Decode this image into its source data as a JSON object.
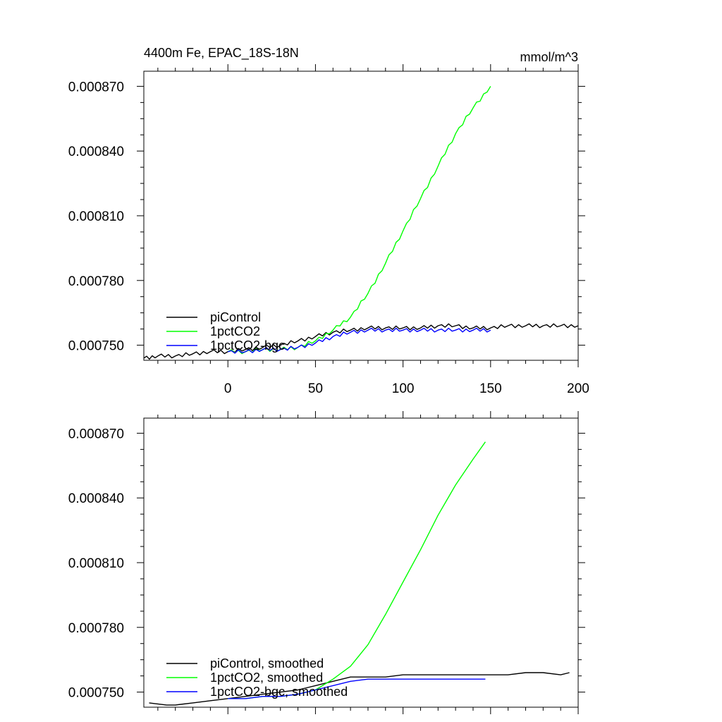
{
  "chart_data": [
    {
      "type": "line",
      "title": "4400m Fe, EPAC_18S-18N",
      "units": "mmol/m^3",
      "xlabel": "",
      "ylabel": "",
      "xlim": [
        -48,
        200
      ],
      "ylim": [
        0.000743,
        0.000877
      ],
      "xticks": [
        0,
        50,
        100,
        150,
        200
      ],
      "xtick_labels": [
        "0",
        "50",
        "100",
        "150",
        "200"
      ],
      "yticks": [
        0.00075,
        0.00078,
        0.00081,
        0.00084,
        0.00087
      ],
      "ytick_labels": [
        "0.000750",
        "0.000780",
        "0.000810",
        "0.000840",
        "0.000870"
      ],
      "grid": false,
      "legend_position": "bottom-left",
      "series": [
        {
          "name": "piControl",
          "color": "#000000",
          "x": [
            -48,
            -40,
            -30,
            -20,
            -10,
            0,
            10,
            20,
            30,
            40,
            50,
            60,
            70,
            80,
            90,
            100,
            110,
            120,
            130,
            140,
            150,
            160,
            170,
            180,
            190,
            200
          ],
          "y": [
            0.000744,
            0.000745,
            0.000745,
            0.000746,
            0.000747,
            0.000747,
            0.000748,
            0.000749,
            0.00075,
            0.000752,
            0.000754,
            0.000756,
            0.000757,
            0.000758,
            0.000758,
            0.000758,
            0.000758,
            0.000759,
            0.000759,
            0.000758,
            0.000758,
            0.000759,
            0.000759,
            0.000759,
            0.000759,
            0.000759
          ]
        },
        {
          "name": "1pctCO2",
          "color": "#00ff00",
          "x": [
            0,
            10,
            20,
            30,
            40,
            50,
            60,
            70,
            80,
            90,
            100,
            110,
            120,
            130,
            140,
            150
          ],
          "y": [
            0.000747,
            0.000747,
            0.000748,
            0.000748,
            0.000749,
            0.000752,
            0.000757,
            0.000763,
            0.000774,
            0.000788,
            0.000803,
            0.000818,
            0.000833,
            0.000848,
            0.00086,
            0.00087
          ]
        },
        {
          "name": "1pctCO2-bgc",
          "color": "#0000ff",
          "x": [
            0,
            10,
            20,
            30,
            40,
            50,
            60,
            70,
            80,
            90,
            100,
            110,
            120,
            130,
            140,
            150
          ],
          "y": [
            0.000747,
            0.000747,
            0.000748,
            0.000748,
            0.000749,
            0.000751,
            0.000754,
            0.000756,
            0.000757,
            0.000757,
            0.000757,
            0.000757,
            0.000757,
            0.000757,
            0.000757,
            0.000757
          ]
        }
      ]
    },
    {
      "type": "line",
      "title": "",
      "units": "",
      "xlabel": "",
      "ylabel": "",
      "xlim": [
        -48,
        200
      ],
      "ylim": [
        0.000743,
        0.000877
      ],
      "xticks": [
        0,
        50,
        100,
        150,
        200
      ],
      "xtick_labels": [],
      "yticks": [
        0.00075,
        0.00078,
        0.00081,
        0.00084,
        0.00087
      ],
      "ytick_labels": [
        "0.000750",
        "0.000780",
        "0.000810",
        "0.000840",
        "0.000870"
      ],
      "grid": false,
      "legend_position": "bottom-left",
      "series": [
        {
          "name": "piControl, smoothed",
          "color": "#000000",
          "x": [
            -45,
            -35,
            -30,
            -20,
            -10,
            0,
            10,
            20,
            30,
            40,
            50,
            60,
            70,
            80,
            90,
            100,
            110,
            120,
            130,
            134,
            140,
            150,
            160,
            170,
            180,
            190,
            195
          ],
          "y": [
            0.000745,
            0.000744,
            0.000744,
            0.000745,
            0.000746,
            0.000747,
            0.000748,
            0.000749,
            0.00075,
            0.000751,
            0.000753,
            0.000755,
            0.000757,
            0.000757,
            0.000757,
            0.000758,
            0.000758,
            0.000758,
            0.000758,
            0.000758,
            0.000758,
            0.000758,
            0.000758,
            0.000759,
            0.000759,
            0.000758,
            0.000759
          ]
        },
        {
          "name": "1pctCO2, smoothed",
          "color": "#00ff00",
          "x": [
            0,
            10,
            20,
            30,
            40,
            50,
            60,
            70,
            80,
            90,
            100,
            110,
            120,
            130,
            140,
            147
          ],
          "y": [
            0.000747,
            0.000747,
            0.000748,
            0.000748,
            0.000749,
            0.000751,
            0.000756,
            0.000762,
            0.000772,
            0.000786,
            0.000801,
            0.000816,
            0.000832,
            0.000846,
            0.000858,
            0.000866
          ]
        },
        {
          "name": "1pctCO2-bgc, smoothed",
          "color": "#0000ff",
          "x": [
            0,
            10,
            20,
            30,
            40,
            50,
            60,
            70,
            80,
            90,
            100,
            110,
            120,
            130,
            140,
            147
          ],
          "y": [
            0.000747,
            0.000747,
            0.000748,
            0.000748,
            0.000749,
            0.000751,
            0.000753,
            0.000755,
            0.000756,
            0.000756,
            0.000756,
            0.000756,
            0.000756,
            0.000756,
            0.000756,
            0.000756
          ]
        }
      ]
    }
  ]
}
